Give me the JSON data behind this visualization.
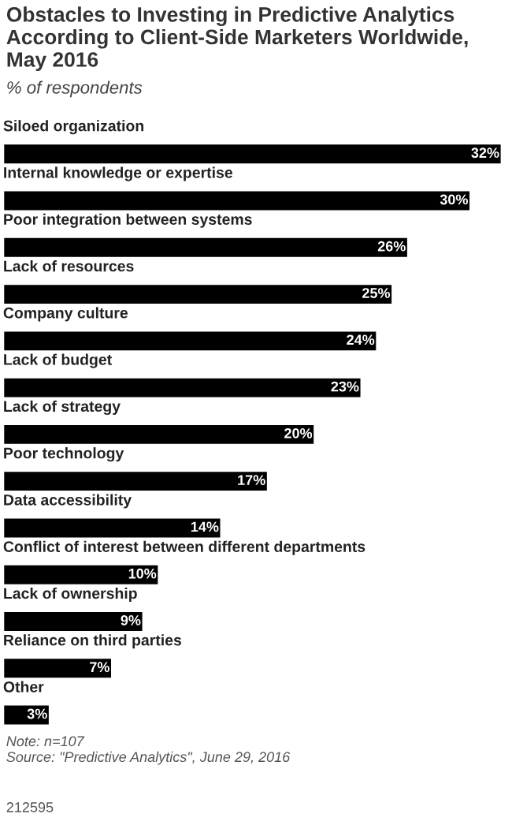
{
  "chart_data": {
    "type": "bar",
    "orientation": "horizontal",
    "title": "Obstacles to Investing in Predictive Analytics According to Client-Side Marketers Worldwide, May 2016",
    "subtitle": "% of respondents",
    "categories": [
      "Siloed organization",
      "Internal knowledge or expertise",
      "Poor integration between systems",
      "Lack of resources",
      "Company culture",
      "Lack of budget",
      "Lack of strategy",
      "Poor technology",
      "Data accessibility",
      "Conflict of interest between different departments",
      "Lack of ownership",
      "Reliance on third parties",
      "Other"
    ],
    "values": [
      32,
      30,
      26,
      25,
      24,
      23,
      20,
      17,
      14,
      10,
      9,
      7,
      3
    ],
    "value_labels": [
      "32%",
      "30%",
      "26%",
      "25%",
      "24%",
      "23%",
      "20%",
      "17%",
      "14%",
      "10%",
      "9%",
      "7%",
      "3%"
    ],
    "color": "#000000",
    "annotations": [
      "Note: n=107",
      "Source: \"Predictive Analytics\", June 29, 2016",
      "212595"
    ]
  }
}
